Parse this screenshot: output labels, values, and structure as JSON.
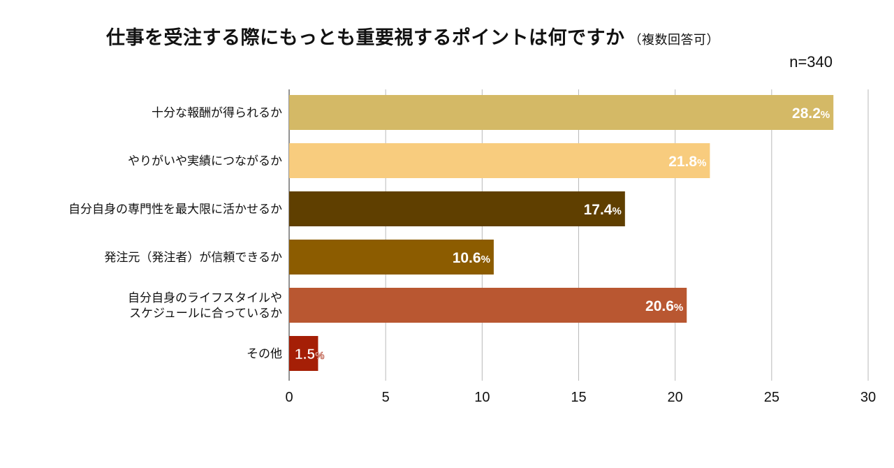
{
  "title": "仕事を受注する際にもっとも重要視するポイントは何ですか",
  "subtitle": "（複数回答可）",
  "n_label": "n=340",
  "chart_data": {
    "type": "bar",
    "orientation": "horizontal",
    "title": "仕事を受注する際にもっとも重要視するポイントは何ですか",
    "subtitle": "（複数回答可）",
    "annotation": "n=340",
    "categories": [
      [
        "十分な報酬が得られるか"
      ],
      [
        "やりがいや実績につながるか"
      ],
      [
        "自分自身の専門性を最大限に活かせるか"
      ],
      [
        "発注元（発注者）が信頼できるか"
      ],
      [
        "自分自身のライフスタイルや",
        "スケジュールに合っているか"
      ],
      [
        "その他"
      ]
    ],
    "values": [
      28.2,
      21.8,
      17.4,
      10.6,
      20.6,
      1.5
    ],
    "value_labels": [
      "28.2",
      "21.8",
      "17.4",
      "10.6",
      "20.6",
      "1.5"
    ],
    "value_suffix": "%",
    "colors": [
      "#d4b966",
      "#f8cc7e",
      "#5f3f00",
      "#8c5c00",
      "#b95731",
      "#a51f06"
    ],
    "xlim": [
      0,
      30
    ],
    "xticks": [
      0,
      5,
      10,
      15,
      20,
      25,
      30
    ],
    "grid": true,
    "legend": "none"
  }
}
